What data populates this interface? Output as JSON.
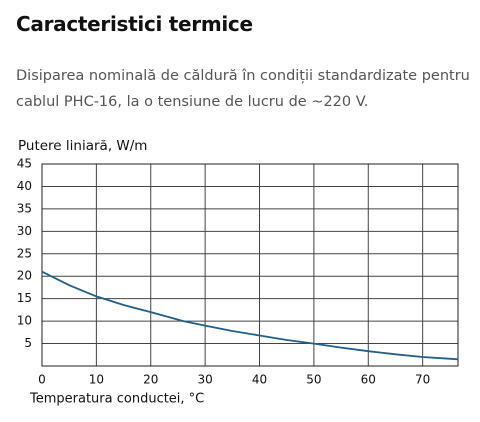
{
  "header": {
    "title": "Caracteristici termice"
  },
  "description": [
    "Disiparea nominală de căldură în condiții standardizate pentru",
    "cablul PHC-16, la o tensiune de lucru de ~220 V."
  ],
  "chart_data": {
    "type": "line",
    "y_label": "Putere liniară, W/m",
    "x_label": "Temperatura conductei, °C",
    "x": [
      0,
      5,
      10,
      15,
      20,
      26,
      30,
      35,
      40,
      45,
      50,
      55,
      60,
      65,
      70,
      76.5
    ],
    "values": [
      21,
      18,
      15.5,
      13.6,
      12,
      10,
      9,
      7.8,
      6.8,
      5.8,
      5,
      4.1,
      3.3,
      2.6,
      2,
      1.5
    ],
    "color": "#1f5f8b",
    "xlim": [
      0,
      76.5
    ],
    "xticks": [
      0,
      10,
      20,
      30,
      40,
      50,
      60,
      70
    ],
    "ylim": [
      0,
      45
    ],
    "yticks": [
      5,
      10,
      15,
      20,
      25,
      30,
      35,
      40,
      45
    ],
    "grid": true
  }
}
